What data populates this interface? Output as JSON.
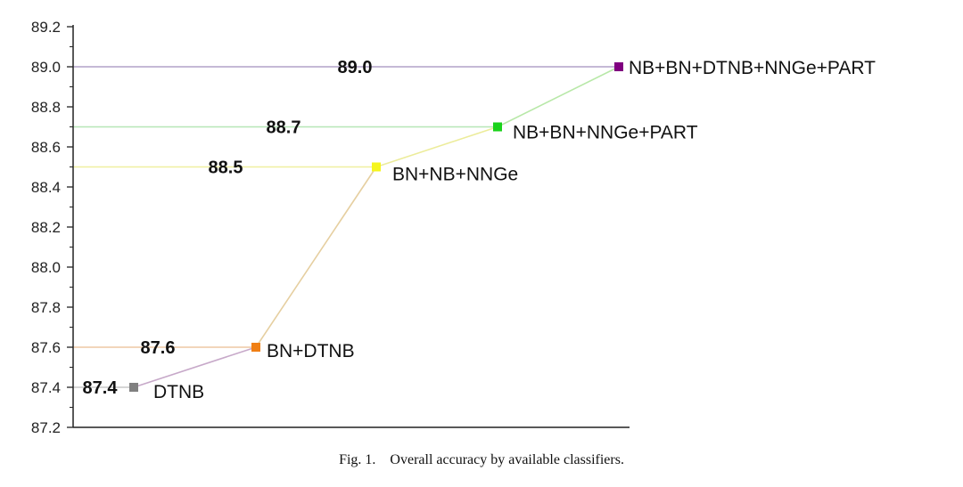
{
  "chart_data": {
    "type": "line",
    "ylim": [
      87.2,
      89.2
    ],
    "yticks": [
      "87.2",
      "87.4",
      "87.6",
      "87.8",
      "88.0",
      "88.2",
      "88.4",
      "88.6",
      "88.8",
      "89.0",
      "89.2"
    ],
    "grid": false,
    "points": [
      {
        "label": "DTNB",
        "value": 87.4,
        "value_label": "87.4",
        "color": "#808080"
      },
      {
        "label": "BN+DTNB",
        "value": 87.6,
        "value_label": "87.6",
        "color": "#f07f14"
      },
      {
        "label": "BN+NB+NNGe",
        "value": 88.5,
        "value_label": "88.5",
        "color": "#f5f51e"
      },
      {
        "label": "NB+BN+NNGe+PART",
        "value": 88.7,
        "value_label": "88.7",
        "color": "#19d219"
      },
      {
        "label": "NB+BN+DTNB+NNGe+PART",
        "value": 89.0,
        "value_label": "89.0",
        "color": "#800080"
      }
    ],
    "segment_colors": [
      "#c7a9c9",
      "#e6cfa0",
      "#ecec9a",
      "#b8e8a8"
    ],
    "reference_line_colors": [
      "#c8c8c8",
      "#edc8a4",
      "#f0f0a0",
      "#b6e6b6",
      "#b2a2c8"
    ]
  },
  "caption": {
    "fig": "Fig. 1.",
    "text": "Overall accuracy by available classifiers."
  }
}
